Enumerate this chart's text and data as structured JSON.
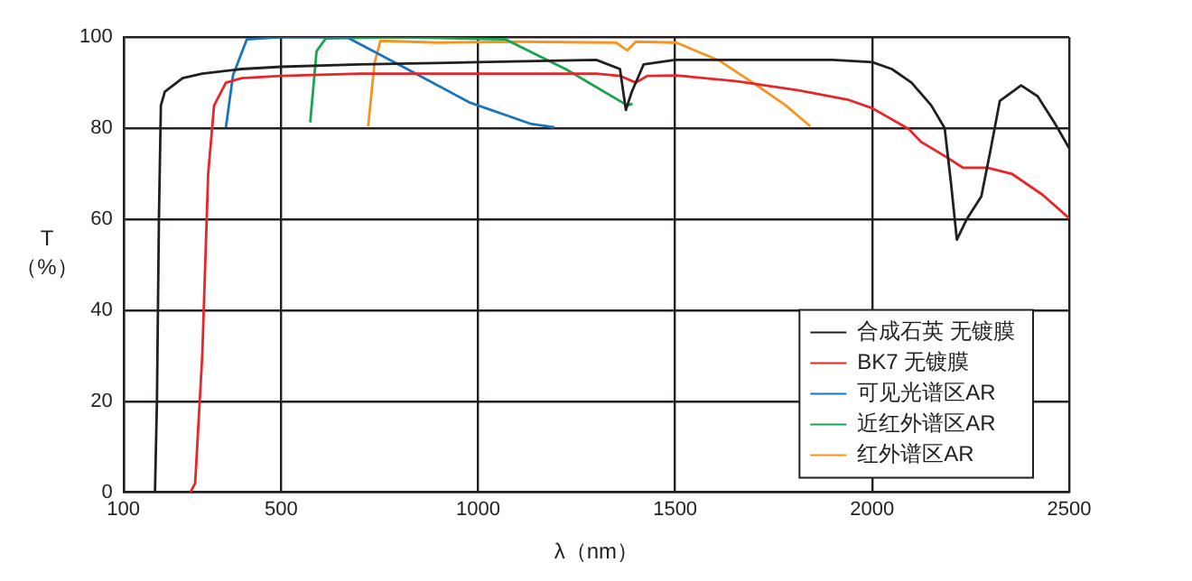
{
  "chart_data": {
    "type": "line",
    "xlabel": "λ（nm）",
    "ylabel": "T\n（%）",
    "xlim": [
      100,
      2500
    ],
    "xticks": [
      100,
      500,
      1000,
      1500,
      2000,
      2500
    ],
    "ylim": [
      0,
      100
    ],
    "yticks": [
      0,
      20,
      40,
      60,
      80,
      100
    ],
    "grid": true,
    "legend": "bottom right",
    "marker": "none",
    "line_style": "solid",
    "series": [
      {
        "name": "合成石英 无镀膜",
        "color": "#231f20",
        "x": [
          180,
          185,
          190,
          195,
          205,
          250,
          300,
          400,
          500,
          700,
          1000,
          1300,
          1360,
          1375,
          1390,
          1420,
          1500,
          1700,
          1900,
          2000,
          2050,
          2100,
          2150,
          2184,
          2200,
          2215,
          2240,
          2277,
          2300,
          2324,
          2378,
          2420,
          2464,
          2500
        ],
        "values": [
          0,
          20,
          60,
          85,
          88,
          91,
          92,
          93,
          93.5,
          94,
          94.5,
          95,
          93,
          84,
          88,
          94,
          95,
          95,
          95,
          94.5,
          93,
          90,
          85,
          80,
          68,
          55.5,
          60,
          65,
          75,
          86,
          89.4,
          87,
          81,
          75.6
        ]
      },
      {
        "name": "BK7 无镀膜",
        "color": "#e8262a",
        "x": [
          270,
          282,
          300,
          315,
          330,
          360,
          400,
          500,
          700,
          1000,
          1300,
          1360,
          1400,
          1430,
          1503,
          1658,
          1813,
          1937,
          2000,
          2093,
          2124,
          2184,
          2231,
          2292,
          2354,
          2432,
          2500
        ],
        "values": [
          0,
          2,
          30,
          70,
          85,
          90,
          91,
          91.5,
          92,
          92,
          92,
          91.5,
          90,
          91.5,
          91.6,
          90.3,
          88.3,
          86.3,
          84.4,
          79.8,
          77,
          73.9,
          71.3,
          71.3,
          70,
          65.4,
          60.2
        ]
      },
      {
        "name": "可见光谱区AR",
        "color": "#1a74bc",
        "x": [
          360,
          378,
          413,
          500,
          667,
          822,
          977,
          1132,
          1194
        ],
        "values": [
          80.2,
          91.6,
          99.5,
          100,
          100,
          92.9,
          85.7,
          81,
          80.2
        ]
      },
      {
        "name": "近红外谱区AR",
        "color": "#17a54b",
        "x": [
          574,
          590,
          613,
          800,
          1070,
          1224,
          1379,
          1392
        ],
        "values": [
          81.3,
          96.9,
          99.7,
          100,
          99.5,
          92.9,
          85,
          85.4
        ]
      },
      {
        "name": "红外谱区AR",
        "color": "#f7941d",
        "x": [
          721,
          737,
          752,
          900,
          1100,
          1350,
          1379,
          1400,
          1503,
          1611,
          1704,
          1781,
          1843
        ],
        "values": [
          80.4,
          94.2,
          99.2,
          98.8,
          99,
          98.8,
          97.1,
          99,
          98.8,
          94.9,
          89.6,
          85,
          80.4
        ]
      }
    ]
  }
}
